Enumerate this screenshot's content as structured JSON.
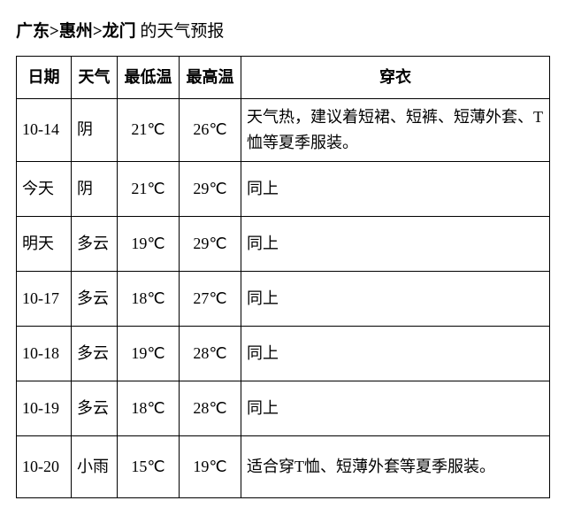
{
  "header": {
    "breadcrumb": "广东>惠州>龙门",
    "suffix": " 的天气预报"
  },
  "table": {
    "columns": [
      "日期",
      "天气",
      "最低温",
      "最高温",
      "穿衣"
    ],
    "rows": [
      {
        "date": "10-14",
        "wx": "阴",
        "low": "21℃",
        "high": "26℃",
        "cloth": "天气热，建议着短裙、短裤、短薄外套、T恤等夏季服装。",
        "tall": true
      },
      {
        "date": "今天",
        "wx": "阴",
        "low": "21℃",
        "high": "29℃",
        "cloth": "同上"
      },
      {
        "date": "明天",
        "wx": "多云",
        "low": "19℃",
        "high": "29℃",
        "cloth": "同上"
      },
      {
        "date": "10-17",
        "wx": "多云",
        "low": "18℃",
        "high": "27℃",
        "cloth": "同上"
      },
      {
        "date": "10-18",
        "wx": "多云",
        "low": "19℃",
        "high": "28℃",
        "cloth": "同上"
      },
      {
        "date": "10-19",
        "wx": "多云",
        "low": "18℃",
        "high": "28℃",
        "cloth": "同上"
      },
      {
        "date": "10-20",
        "wx": "小雨",
        "low": "15℃",
        "high": "19℃",
        "cloth": "适合穿T恤、短薄外套等夏季服装。",
        "tall": true
      }
    ]
  }
}
